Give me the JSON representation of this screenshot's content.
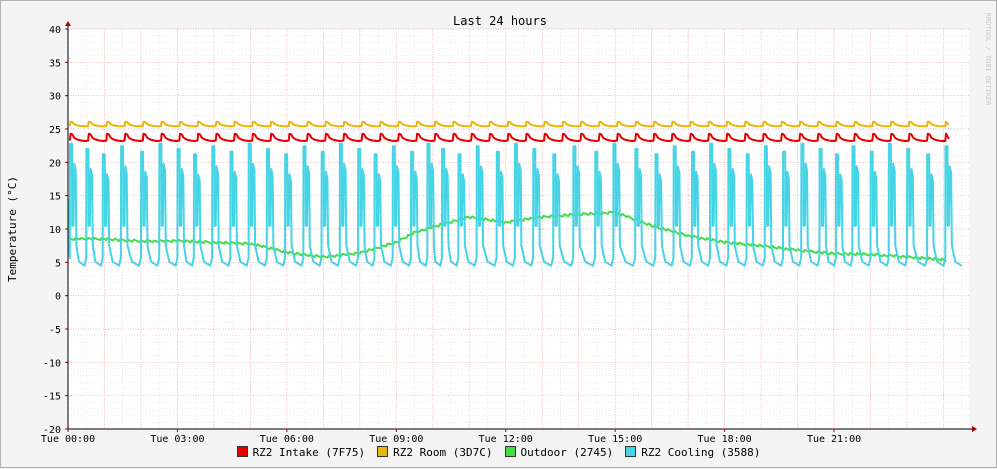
{
  "chart_data": {
    "type": "line",
    "title": "Last 24 hours",
    "ylabel": "Temperature (°C)",
    "xlabel": "",
    "watermark": "RRDTOOL / TOBI OETIKER",
    "ylim": [
      -20,
      40
    ],
    "yticks": [
      -20,
      -15,
      -10,
      -5,
      0,
      5,
      10,
      15,
      20,
      25,
      30,
      35,
      40
    ],
    "xlim_hours": [
      0,
      24.7
    ],
    "x_tick_hours": [
      0,
      3,
      6,
      9,
      12,
      15,
      18,
      21
    ],
    "x_tick_labels": [
      "Tue 00:00",
      "Tue 03:00",
      "Tue 06:00",
      "Tue 09:00",
      "Tue 12:00",
      "Tue 15:00",
      "Tue 18:00",
      "Tue 21:00"
    ],
    "grid": true,
    "legend_position": "bottom",
    "series": [
      {
        "name": "RZ2 Intake (7F75)",
        "color": "#e60000",
        "pattern": "periodic",
        "period_hours": 0.5,
        "base": 23.2,
        "peak": 24.3,
        "cycles_start_hour": 0.05,
        "cycles_end_hour": 24.05
      },
      {
        "name": "RZ2 Room (3D7C)",
        "color": "#e8b50a",
        "pattern": "periodic",
        "period_hours": 0.5,
        "base": 25.4,
        "peak": 26.1,
        "cycles_start_hour": 0.05,
        "cycles_end_hour": 24.05
      },
      {
        "name": "Outdoor (2745)",
        "color": "#44dd44",
        "pattern": "smooth",
        "x_hours": [
          0,
          1,
          2,
          3,
          4,
          5,
          6,
          7,
          8,
          9,
          9.5,
          10,
          11,
          12,
          13,
          14,
          15,
          16,
          17,
          18,
          19,
          20,
          21,
          22,
          23,
          24,
          24.1
        ],
        "y": [
          8.5,
          8.5,
          8.2,
          8.2,
          8.0,
          7.8,
          6.5,
          5.8,
          6.4,
          8.0,
          9.5,
          10.3,
          11.8,
          11.0,
          11.8,
          12.2,
          12.5,
          10.5,
          9.0,
          8.0,
          7.5,
          6.8,
          6.3,
          6.2,
          5.8,
          5.4,
          5.3
        ]
      },
      {
        "name": "RZ2 Cooling (3588)",
        "color": "#44d4e6",
        "pattern": "spikes",
        "base": 4.5,
        "peak": 22.8,
        "spike_hours": [
          0.05,
          0.5,
          0.95,
          1.45,
          2.0,
          2.5,
          3.0,
          3.45,
          3.95,
          4.45,
          4.95,
          5.45,
          5.95,
          6.45,
          6.95,
          7.45,
          7.95,
          8.4,
          8.9,
          9.4,
          9.85,
          10.25,
          10.7,
          11.2,
          11.75,
          12.25,
          12.75,
          13.3,
          13.85,
          14.45,
          14.95,
          15.55,
          16.1,
          16.6,
          17.1,
          17.6,
          18.1,
          18.6,
          19.1,
          19.6,
          20.1,
          20.6,
          21.05,
          21.5,
          22.0,
          22.5,
          23.0,
          23.55,
          24.05
        ]
      }
    ]
  }
}
